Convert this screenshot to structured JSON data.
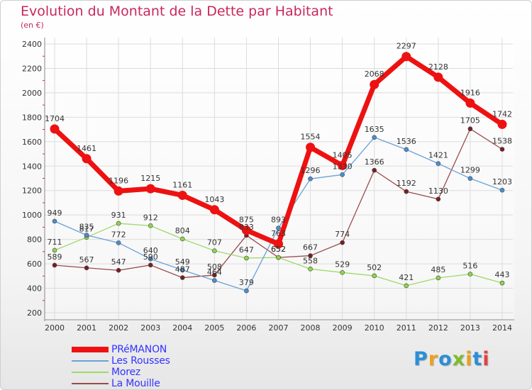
{
  "title": "Evolution du Montant de la Dette par Habitant",
  "subtitle": "(en €)",
  "logo": {
    "text": "Proxiti",
    "letter_colors": [
      "#2a8fd8",
      "#f0a020",
      "#2a8fd8",
      "#7cbc2c",
      "#e6a020",
      "#2a8fd8",
      "#e64040"
    ]
  },
  "chart_data": {
    "type": "line",
    "title": "Evolution du Montant de la Dette par Habitant",
    "ylabel": "(en €)",
    "xlabel": "",
    "categories": [
      "2000",
      "2001",
      "2002",
      "2003",
      "2004",
      "2005",
      "2006",
      "2007",
      "2008",
      "2009",
      "2010",
      "2011",
      "2012",
      "2013",
      "2014"
    ],
    "ylim": [
      200,
      2400
    ],
    "yticks": [
      200,
      400,
      600,
      800,
      1000,
      1200,
      1400,
      1600,
      1800,
      2000,
      2200,
      2400
    ],
    "grid": true,
    "legend_position": "bottom-left",
    "series": [
      {
        "name": "La Mouille",
        "color": "#7a1e22",
        "line_color": "#9a4a4e",
        "width": 1.3,
        "marker_r": 3,
        "values": [
          589,
          567,
          547,
          590,
          487,
          508,
          833,
          652,
          667,
          774,
          1366,
          1192,
          1130,
          1705,
          1538
        ]
      },
      {
        "name": "Morez",
        "color": "#8fd64a",
        "line_color": "#9fd86a",
        "width": 1.3,
        "marker_r": 3,
        "values": [
          711,
          817,
          931,
          912,
          804,
          707,
          647,
          652,
          558,
          529,
          502,
          421,
          485,
          516,
          443
        ]
      },
      {
        "name": "Les Rousses",
        "color": "#4a8fd0",
        "line_color": "#6aa2d8",
        "width": 1.3,
        "marker_r": 3,
        "values": [
          949,
          835,
          772,
          640,
          549,
          464,
          379,
          893,
          1296,
          1330,
          1635,
          1536,
          1421,
          1299,
          1203
        ]
      },
      {
        "name": "PRéMANON",
        "color": "#ee1111",
        "line_color": "#ee1111",
        "width": 7,
        "marker_r": 6.5,
        "values": [
          1704,
          1461,
          1196,
          1215,
          1161,
          1043,
          875,
          763,
          1554,
          1405,
          2068,
          2297,
          2128,
          1916,
          1742
        ]
      }
    ]
  }
}
